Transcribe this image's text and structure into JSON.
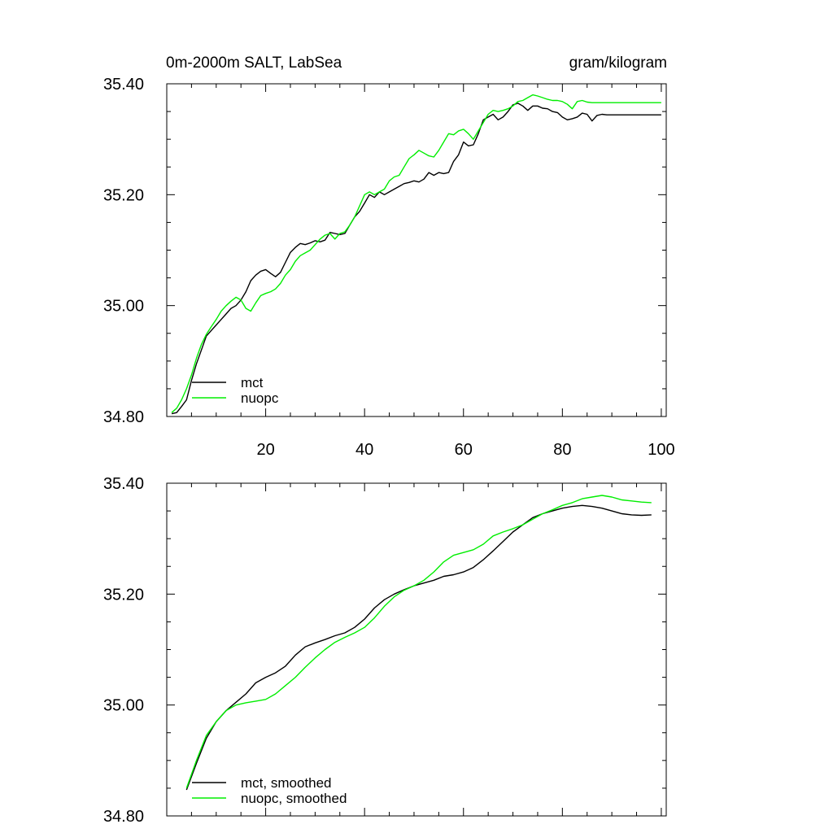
{
  "colors": {
    "mct": "#000000",
    "nuopc": "#00ee00",
    "background": "#ffffff"
  },
  "chart_data": [
    {
      "type": "line",
      "title": "0m-2000m SALT, LabSea",
      "units": "gram/kilogram",
      "xlim": [
        0,
        101
      ],
      "ylim": [
        34.8,
        35.4
      ],
      "xticks": [
        20,
        40,
        60,
        80,
        100
      ],
      "xtick_labels": [
        "20",
        "40",
        "60",
        "80",
        "100"
      ],
      "yticks": [
        34.8,
        35.0,
        35.2,
        35.4
      ],
      "ytick_labels": [
        "34.80",
        "35.00",
        "35.20",
        "35.40"
      ],
      "grid": false,
      "legend": "bottom-left",
      "series": [
        {
          "name": "mct",
          "color": "#000000",
          "x": [
            1,
            2,
            3,
            4,
            5,
            6,
            7,
            8,
            9,
            10,
            11,
            12,
            13,
            14,
            15,
            16,
            17,
            18,
            19,
            20,
            21,
            22,
            23,
            24,
            25,
            26,
            27,
            28,
            29,
            30,
            31,
            32,
            33,
            34,
            35,
            36,
            37,
            38,
            39,
            40,
            41,
            42,
            43,
            44,
            45,
            46,
            47,
            48,
            49,
            50,
            51,
            52,
            53,
            54,
            55,
            56,
            57,
            58,
            59,
            60,
            61,
            62,
            63,
            64,
            65,
            66,
            67,
            68,
            69,
            70,
            71,
            72,
            73,
            74,
            75,
            76,
            77,
            78,
            79,
            80,
            81,
            82,
            83,
            84,
            85,
            86,
            87,
            88,
            89,
            90,
            91,
            92,
            93,
            94,
            95,
            96,
            97,
            98,
            99,
            100
          ],
          "values": [
            34.805,
            34.807,
            34.818,
            34.83,
            34.865,
            34.895,
            34.92,
            34.945,
            34.955,
            34.965,
            34.975,
            34.985,
            34.995,
            35.0,
            35.01,
            35.025,
            35.045,
            35.055,
            35.062,
            35.065,
            35.058,
            35.052,
            35.06,
            35.078,
            35.096,
            35.105,
            35.112,
            35.11,
            35.113,
            35.117,
            35.115,
            35.118,
            35.132,
            35.13,
            35.128,
            35.13,
            35.145,
            35.16,
            35.17,
            35.185,
            35.2,
            35.195,
            35.205,
            35.2,
            35.205,
            35.21,
            35.215,
            35.22,
            35.222,
            35.225,
            35.223,
            35.228,
            35.24,
            35.235,
            35.24,
            35.238,
            35.24,
            35.26,
            35.272,
            35.295,
            35.288,
            35.29,
            35.31,
            35.335,
            35.34,
            35.345,
            35.335,
            35.34,
            35.35,
            35.362,
            35.365,
            35.36,
            35.352,
            35.36,
            35.36,
            35.356,
            35.355,
            35.35,
            35.348,
            35.34,
            35.335,
            35.337,
            35.34,
            35.347,
            35.345,
            35.333,
            35.343,
            35.345,
            35.344,
            35.344,
            35.344,
            35.344,
            35.344,
            35.344,
            35.344,
            35.344,
            35.344,
            35.344,
            35.344,
            35.344
          ]
        },
        {
          "name": "nuopc",
          "color": "#00ee00",
          "x": [
            1,
            2,
            3,
            4,
            5,
            6,
            7,
            8,
            9,
            10,
            11,
            12,
            13,
            14,
            15,
            16,
            17,
            18,
            19,
            20,
            21,
            22,
            23,
            24,
            25,
            26,
            27,
            28,
            29,
            30,
            31,
            32,
            33,
            34,
            35,
            36,
            37,
            38,
            39,
            40,
            41,
            42,
            43,
            44,
            45,
            46,
            47,
            48,
            49,
            50,
            51,
            52,
            53,
            54,
            55,
            56,
            57,
            58,
            59,
            60,
            61,
            62,
            63,
            64,
            65,
            66,
            67,
            68,
            69,
            70,
            71,
            72,
            73,
            74,
            75,
            76,
            77,
            78,
            79,
            80,
            81,
            82,
            83,
            84,
            85,
            86,
            87,
            88,
            89,
            90,
            91,
            92,
            93,
            94,
            95,
            96,
            97,
            98,
            99,
            100
          ],
          "values": [
            34.807,
            34.815,
            34.83,
            34.85,
            34.875,
            34.905,
            34.93,
            34.948,
            34.962,
            34.975,
            34.99,
            35.0,
            35.008,
            35.015,
            35.01,
            34.995,
            34.99,
            35.005,
            35.018,
            35.022,
            35.025,
            35.03,
            35.04,
            35.055,
            35.065,
            35.08,
            35.09,
            35.095,
            35.1,
            35.11,
            35.12,
            35.127,
            35.13,
            35.12,
            35.13,
            35.133,
            35.145,
            35.16,
            35.18,
            35.2,
            35.205,
            35.2,
            35.205,
            35.21,
            35.225,
            35.232,
            35.235,
            35.25,
            35.265,
            35.272,
            35.28,
            35.275,
            35.27,
            35.268,
            35.28,
            35.295,
            35.31,
            35.308,
            35.315,
            35.318,
            35.31,
            35.3,
            35.315,
            35.33,
            35.345,
            35.352,
            35.35,
            35.352,
            35.355,
            35.36,
            35.368,
            35.37,
            35.375,
            35.38,
            35.378,
            35.375,
            35.372,
            35.37,
            35.37,
            35.368,
            35.363,
            35.355,
            35.368,
            35.37,
            35.367,
            35.366,
            35.366,
            35.366,
            35.366,
            35.366,
            35.366,
            35.366,
            35.366,
            35.366,
            35.366,
            35.366,
            35.366,
            35.366,
            35.366,
            35.366
          ]
        }
      ]
    },
    {
      "type": "line",
      "title": "",
      "xlim": [
        0,
        101
      ],
      "ylim": [
        34.8,
        35.4
      ],
      "xticks": [
        20,
        40,
        60,
        80,
        100
      ],
      "yticks": [
        34.8,
        35.0,
        35.2,
        35.4
      ],
      "ytick_labels": [
        "34.80",
        "35.00",
        "35.20",
        "35.40"
      ],
      "grid": false,
      "legend": "bottom-left",
      "series": [
        {
          "name": "mct, smoothed",
          "color": "#000000",
          "x": [
            4,
            6,
            8,
            10,
            12,
            14,
            16,
            18,
            20,
            22,
            24,
            26,
            28,
            30,
            32,
            34,
            36,
            38,
            40,
            42,
            44,
            46,
            48,
            50,
            52,
            54,
            56,
            58,
            60,
            62,
            64,
            66,
            68,
            70,
            72,
            74,
            76,
            78,
            80,
            82,
            84,
            86,
            88,
            90,
            92,
            94,
            96,
            98
          ],
          "values": [
            34.847,
            34.895,
            34.94,
            34.97,
            34.99,
            35.005,
            35.02,
            35.04,
            35.05,
            35.058,
            35.07,
            35.09,
            35.105,
            35.112,
            35.118,
            35.125,
            35.13,
            35.14,
            35.155,
            35.175,
            35.19,
            35.2,
            35.208,
            35.215,
            35.22,
            35.225,
            35.232,
            35.235,
            35.24,
            35.248,
            35.262,
            35.278,
            35.295,
            35.312,
            35.325,
            35.338,
            35.345,
            35.35,
            35.355,
            35.358,
            35.36,
            35.358,
            35.355,
            35.35,
            35.345,
            35.343,
            35.342,
            35.343
          ]
        },
        {
          "name": "nuopc, smoothed",
          "color": "#00ee00",
          "x": [
            4,
            6,
            8,
            10,
            12,
            14,
            16,
            18,
            20,
            22,
            24,
            26,
            28,
            30,
            32,
            34,
            36,
            38,
            40,
            42,
            44,
            46,
            48,
            50,
            52,
            54,
            56,
            58,
            60,
            62,
            64,
            66,
            68,
            70,
            72,
            74,
            76,
            78,
            80,
            82,
            84,
            86,
            88,
            90,
            92,
            94,
            96,
            98
          ],
          "values": [
            34.85,
            34.9,
            34.945,
            34.97,
            34.99,
            35.0,
            35.004,
            35.007,
            35.01,
            35.02,
            35.035,
            35.05,
            35.068,
            35.085,
            35.1,
            35.113,
            35.122,
            35.13,
            35.14,
            35.157,
            35.178,
            35.195,
            35.207,
            35.215,
            35.225,
            35.24,
            35.258,
            35.27,
            35.275,
            35.28,
            35.29,
            35.305,
            35.312,
            35.318,
            35.325,
            35.335,
            35.345,
            35.352,
            35.36,
            35.365,
            35.372,
            35.375,
            35.378,
            35.375,
            35.37,
            35.368,
            35.366,
            35.365
          ]
        }
      ]
    }
  ]
}
